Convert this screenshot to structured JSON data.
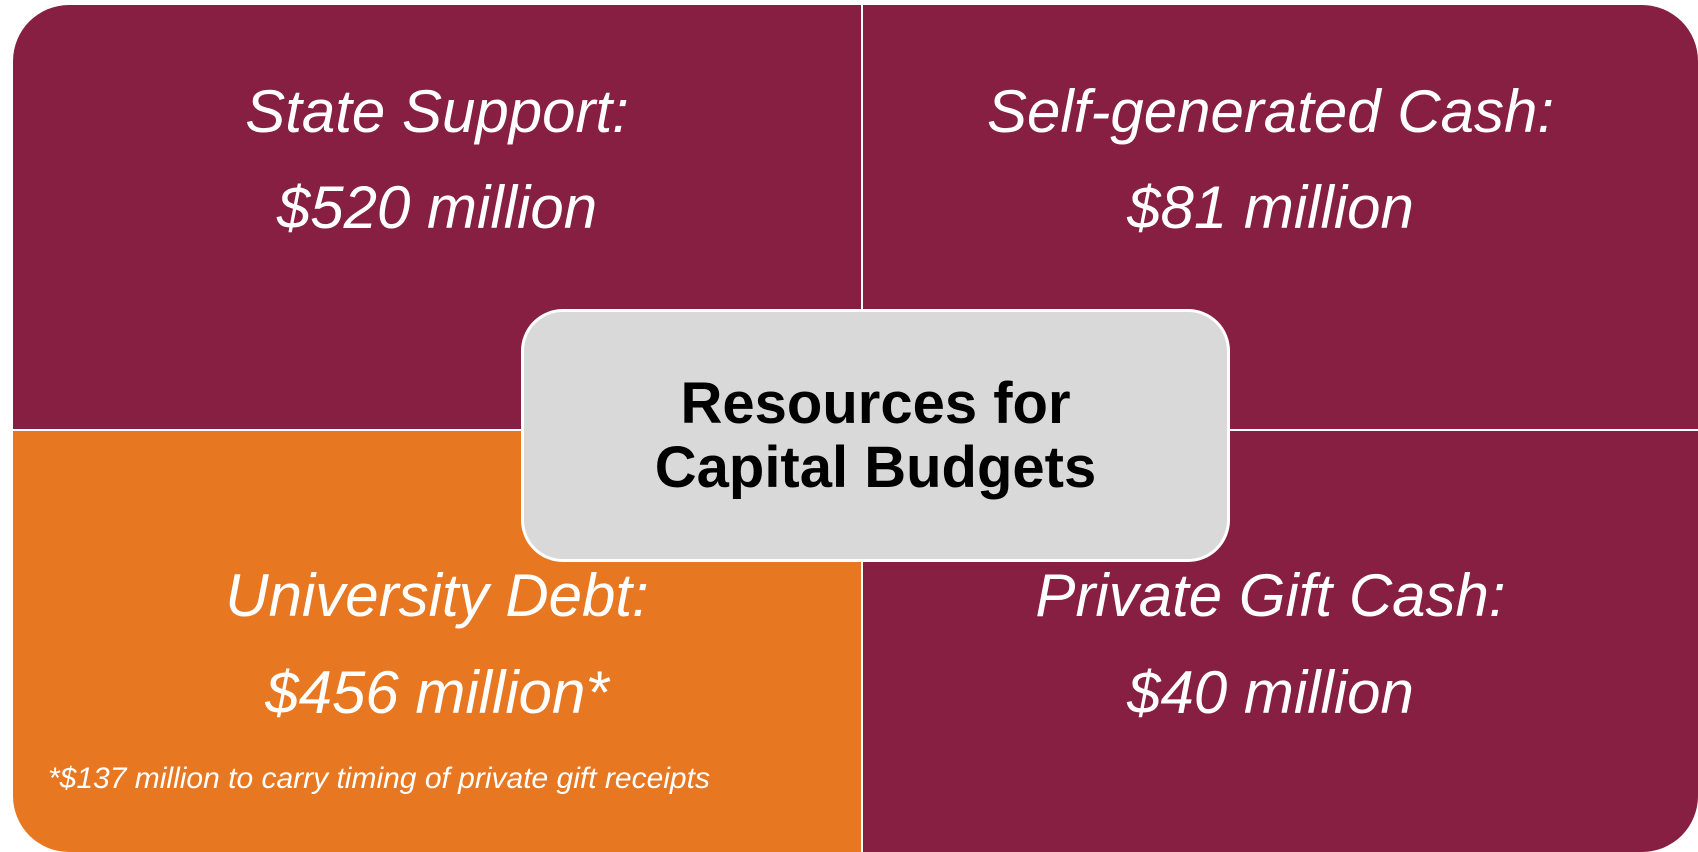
{
  "center": {
    "title": "Resources for Capital Budgets"
  },
  "quadrants": [
    {
      "label": "State Support:",
      "amount": "$520 million"
    },
    {
      "label": "Self-generated Cash:",
      "amount": "$81 million"
    },
    {
      "label": "University Debt:",
      "amount": "$456 million*"
    },
    {
      "label": "Private Gift Cash:",
      "amount": "$40 million"
    }
  ],
  "footnote": "*$137 million to carry timing of private gift receipts"
}
